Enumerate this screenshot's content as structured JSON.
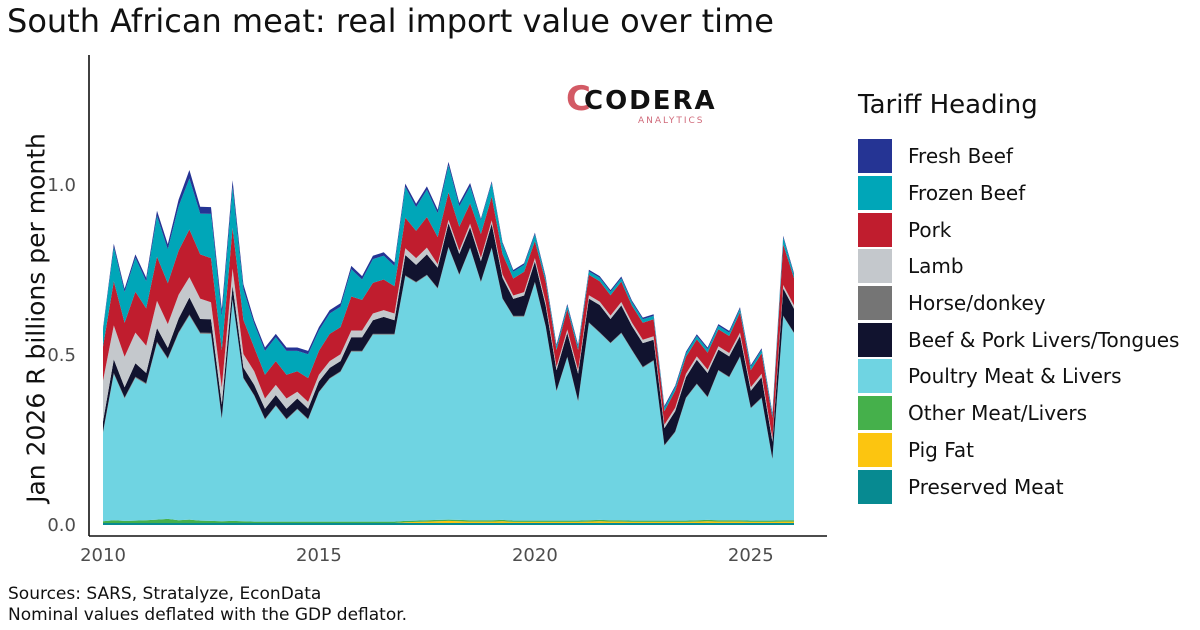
{
  "title": "South African meat: real import value over time",
  "logo": {
    "name": "CODERA",
    "sub": "ANALYTICS",
    "mark": "C"
  },
  "footer": {
    "line1": "Sources: SARS, Stratalyze, EconData",
    "line2": "Nominal values deflated with the GDP deflator."
  },
  "chart_data": {
    "type": "area",
    "stacked": true,
    "title": "South African meat: real import value over time",
    "xlabel": "",
    "ylabel": "Jan 2026  R billions per month",
    "xlim": [
      2010,
      2026
    ],
    "ylim": [
      0,
      1.35
    ],
    "xticks": [
      2010,
      2015,
      2020,
      2025
    ],
    "yticks": [
      0.0,
      0.5,
      1.0
    ],
    "ytick_labels": [
      "0.0",
      "0.5",
      "1.0"
    ],
    "legend_title": "Tariff Heading",
    "legend_position": "right",
    "x": [
      2010.0,
      2010.25,
      2010.5,
      2010.75,
      2011.0,
      2011.25,
      2011.5,
      2011.75,
      2012.0,
      2012.25,
      2012.5,
      2012.75,
      2013.0,
      2013.25,
      2013.5,
      2013.75,
      2014.0,
      2014.25,
      2014.5,
      2014.75,
      2015.0,
      2015.25,
      2015.5,
      2015.75,
      2016.0,
      2016.25,
      2016.5,
      2016.75,
      2017.0,
      2017.25,
      2017.5,
      2017.75,
      2018.0,
      2018.25,
      2018.5,
      2018.75,
      2019.0,
      2019.25,
      2019.5,
      2019.75,
      2020.0,
      2020.25,
      2020.5,
      2020.75,
      2021.0,
      2021.25,
      2021.5,
      2021.75,
      2022.0,
      2022.25,
      2022.5,
      2022.75,
      2023.0,
      2023.25,
      2023.5,
      2023.75,
      2024.0,
      2024.25,
      2024.5,
      2024.75,
      2025.0,
      2025.25,
      2025.5,
      2025.75,
      2026.0
    ],
    "series": [
      {
        "name": "Fresh Beef",
        "color": "#253494",
        "values": [
          0.005,
          0.01,
          0.01,
          0.01,
          0.01,
          0.015,
          0.015,
          0.02,
          0.025,
          0.02,
          0.02,
          0.02,
          0.02,
          0.015,
          0.01,
          0.01,
          0.01,
          0.01,
          0.01,
          0.01,
          0.01,
          0.01,
          0.01,
          0.01,
          0.01,
          0.01,
          0.01,
          0.01,
          0.01,
          0.01,
          0.01,
          0.01,
          0.01,
          0.01,
          0.01,
          0.005,
          0.005,
          0.005,
          0.005,
          0.005,
          0.005,
          0.005,
          0.005,
          0.005,
          0.005,
          0.005,
          0.005,
          0.005,
          0.005,
          0.005,
          0.005,
          0.005,
          0.005,
          0.005,
          0.005,
          0.005,
          0.005,
          0.005,
          0.005,
          0.005,
          0.005,
          0.005,
          0.005,
          0.005,
          0.005
        ]
      },
      {
        "name": "Frozen Beef",
        "color": "#00a6b8",
        "values": [
          0.05,
          0.1,
          0.09,
          0.1,
          0.08,
          0.12,
          0.1,
          0.13,
          0.15,
          0.12,
          0.13,
          0.1,
          0.12,
          0.09,
          0.07,
          0.07,
          0.07,
          0.07,
          0.06,
          0.07,
          0.06,
          0.06,
          0.06,
          0.08,
          0.06,
          0.07,
          0.07,
          0.06,
          0.09,
          0.07,
          0.08,
          0.07,
          0.08,
          0.06,
          0.05,
          0.04,
          0.04,
          0.03,
          0.02,
          0.02,
          0.02,
          0.01,
          0.01,
          0.01,
          0.01,
          0.01,
          0.01,
          0.01,
          0.01,
          0.01,
          0.01,
          0.01,
          0.01,
          0.01,
          0.01,
          0.01,
          0.01,
          0.01,
          0.01,
          0.01,
          0.01,
          0.01,
          0.01,
          0.02,
          0.01
        ]
      },
      {
        "name": "Pork",
        "color": "#c01d2e",
        "values": [
          0.1,
          0.13,
          0.1,
          0.12,
          0.11,
          0.13,
          0.12,
          0.13,
          0.14,
          0.13,
          0.13,
          0.11,
          0.12,
          0.1,
          0.07,
          0.07,
          0.07,
          0.07,
          0.06,
          0.07,
          0.07,
          0.08,
          0.08,
          0.1,
          0.09,
          0.09,
          0.09,
          0.08,
          0.09,
          0.08,
          0.09,
          0.08,
          0.08,
          0.07,
          0.06,
          0.07,
          0.07,
          0.06,
          0.05,
          0.06,
          0.05,
          0.06,
          0.05,
          0.06,
          0.06,
          0.06,
          0.06,
          0.06,
          0.06,
          0.05,
          0.05,
          0.05,
          0.04,
          0.05,
          0.05,
          0.05,
          0.05,
          0.05,
          0.05,
          0.06,
          0.05,
          0.06,
          0.06,
          0.12,
          0.08
        ]
      },
      {
        "name": "Lamb",
        "color": "#c4c8cc",
        "values": [
          0.12,
          0.1,
          0.09,
          0.09,
          0.08,
          0.08,
          0.07,
          0.07,
          0.06,
          0.06,
          0.05,
          0.05,
          0.05,
          0.04,
          0.04,
          0.03,
          0.03,
          0.03,
          0.02,
          0.02,
          0.02,
          0.02,
          0.02,
          0.02,
          0.02,
          0.02,
          0.02,
          0.02,
          0.02,
          0.02,
          0.02,
          0.01,
          0.01,
          0.01,
          0.01,
          0.01,
          0.01,
          0.01,
          0.01,
          0.01,
          0.01,
          0.01,
          0.01,
          0.01,
          0.01,
          0.01,
          0.01,
          0.01,
          0.01,
          0.01,
          0.01,
          0.01,
          0.01,
          0.01,
          0.01,
          0.01,
          0.01,
          0.01,
          0.01,
          0.01,
          0.01,
          0.01,
          0.01,
          0.01,
          0.01
        ]
      },
      {
        "name": "Horse/donkey",
        "color": "#757575",
        "values": [
          0.003,
          0.003,
          0.003,
          0.003,
          0.003,
          0.003,
          0.003,
          0.003,
          0.003,
          0.003,
          0.003,
          0.003,
          0.002,
          0.002,
          0.002,
          0.002,
          0.002,
          0.002,
          0.002,
          0.002,
          0.002,
          0.002,
          0.002,
          0.002,
          0.002,
          0.002,
          0.002,
          0.002,
          0.002,
          0.002,
          0.002,
          0.002,
          0.002,
          0.002,
          0.002,
          0.002,
          0.002,
          0.002,
          0.002,
          0.002,
          0.002,
          0.002,
          0.002,
          0.002,
          0.002,
          0.002,
          0.002,
          0.002,
          0.002,
          0.002,
          0.002,
          0.002,
          0.002,
          0.002,
          0.002,
          0.002,
          0.002,
          0.002,
          0.002,
          0.002,
          0.002,
          0.002,
          0.002,
          0.002,
          0.002
        ]
      },
      {
        "name": "Beef & Pork Livers/Tongues",
        "color": "#11132f",
        "values": [
          0.03,
          0.04,
          0.03,
          0.04,
          0.03,
          0.04,
          0.03,
          0.04,
          0.05,
          0.04,
          0.04,
          0.04,
          0.04,
          0.03,
          0.03,
          0.03,
          0.03,
          0.03,
          0.03,
          0.03,
          0.03,
          0.03,
          0.03,
          0.04,
          0.04,
          0.04,
          0.05,
          0.04,
          0.06,
          0.05,
          0.06,
          0.06,
          0.07,
          0.06,
          0.06,
          0.06,
          0.07,
          0.06,
          0.05,
          0.06,
          0.06,
          0.06,
          0.06,
          0.07,
          0.08,
          0.07,
          0.08,
          0.07,
          0.08,
          0.07,
          0.07,
          0.06,
          0.05,
          0.06,
          0.06,
          0.07,
          0.07,
          0.06,
          0.06,
          0.06,
          0.05,
          0.06,
          0.05,
          0.08,
          0.07
        ]
      },
      {
        "name": "Poultry Meat & Livers",
        "color": "#6fd4e2",
        "values": [
          0.26,
          0.43,
          0.36,
          0.42,
          0.4,
          0.52,
          0.47,
          0.55,
          0.6,
          0.55,
          0.55,
          0.3,
          0.65,
          0.42,
          0.37,
          0.3,
          0.34,
          0.3,
          0.33,
          0.3,
          0.38,
          0.42,
          0.44,
          0.5,
          0.5,
          0.55,
          0.55,
          0.55,
          0.72,
          0.7,
          0.72,
          0.68,
          0.8,
          0.72,
          0.8,
          0.7,
          0.8,
          0.65,
          0.6,
          0.6,
          0.7,
          0.57,
          0.38,
          0.48,
          0.35,
          0.58,
          0.55,
          0.52,
          0.55,
          0.5,
          0.45,
          0.47,
          0.22,
          0.26,
          0.36,
          0.4,
          0.36,
          0.44,
          0.42,
          0.48,
          0.33,
          0.36,
          0.18,
          0.6,
          0.55
        ]
      },
      {
        "name": "Other Meat/Livers",
        "color": "#45b04b",
        "values": [
          0.005,
          0.008,
          0.006,
          0.007,
          0.008,
          0.01,
          0.012,
          0.008,
          0.01,
          0.007,
          0.006,
          0.005,
          0.006,
          0.005,
          0.004,
          0.004,
          0.004,
          0.004,
          0.004,
          0.004,
          0.004,
          0.004,
          0.004,
          0.004,
          0.004,
          0.004,
          0.004,
          0.004,
          0.004,
          0.004,
          0.004,
          0.004,
          0.004,
          0.004,
          0.004,
          0.004,
          0.004,
          0.004,
          0.004,
          0.004,
          0.004,
          0.004,
          0.004,
          0.004,
          0.004,
          0.004,
          0.004,
          0.004,
          0.004,
          0.004,
          0.004,
          0.004,
          0.004,
          0.004,
          0.004,
          0.004,
          0.004,
          0.004,
          0.004,
          0.004,
          0.004,
          0.004,
          0.004,
          0.004,
          0.004
        ]
      },
      {
        "name": "Pig Fat",
        "color": "#fcc510",
        "values": [
          0.0,
          0.0,
          0.0,
          0.0,
          0.0,
          0.0,
          0.0,
          0.0,
          0.0,
          0.0,
          0.0,
          0.0,
          0.0,
          0.0,
          0.0,
          0.0,
          0.0,
          0.0,
          0.0,
          0.0,
          0.0,
          0.0,
          0.0,
          0.0,
          0.0,
          0.0,
          0.0,
          0.0,
          0.002,
          0.003,
          0.004,
          0.005,
          0.006,
          0.005,
          0.004,
          0.004,
          0.004,
          0.005,
          0.003,
          0.003,
          0.003,
          0.003,
          0.003,
          0.003,
          0.003,
          0.004,
          0.005,
          0.004,
          0.004,
          0.003,
          0.003,
          0.003,
          0.003,
          0.003,
          0.003,
          0.004,
          0.005,
          0.004,
          0.004,
          0.004,
          0.003,
          0.003,
          0.003,
          0.004,
          0.004
        ]
      },
      {
        "name": "Preserved Meat",
        "color": "#078a91",
        "values": [
          0.006,
          0.006,
          0.006,
          0.006,
          0.006,
          0.006,
          0.006,
          0.006,
          0.006,
          0.006,
          0.006,
          0.006,
          0.006,
          0.006,
          0.006,
          0.006,
          0.006,
          0.006,
          0.006,
          0.006,
          0.006,
          0.006,
          0.006,
          0.006,
          0.006,
          0.006,
          0.006,
          0.006,
          0.006,
          0.006,
          0.006,
          0.006,
          0.006,
          0.006,
          0.006,
          0.006,
          0.006,
          0.006,
          0.006,
          0.006,
          0.006,
          0.006,
          0.006,
          0.006,
          0.006,
          0.006,
          0.006,
          0.006,
          0.006,
          0.006,
          0.006,
          0.006,
          0.006,
          0.006,
          0.006,
          0.006,
          0.006,
          0.006,
          0.006,
          0.006,
          0.006,
          0.006,
          0.006,
          0.006,
          0.006
        ]
      }
    ],
    "stack_order_bottom_to_top": [
      "Preserved Meat",
      "Pig Fat",
      "Other Meat/Livers",
      "Poultry Meat & Livers",
      "Horse/donkey",
      "Beef & Pork Livers/Tongues",
      "Lamb",
      "Pork",
      "Frozen Beef",
      "Fresh Beef"
    ]
  }
}
